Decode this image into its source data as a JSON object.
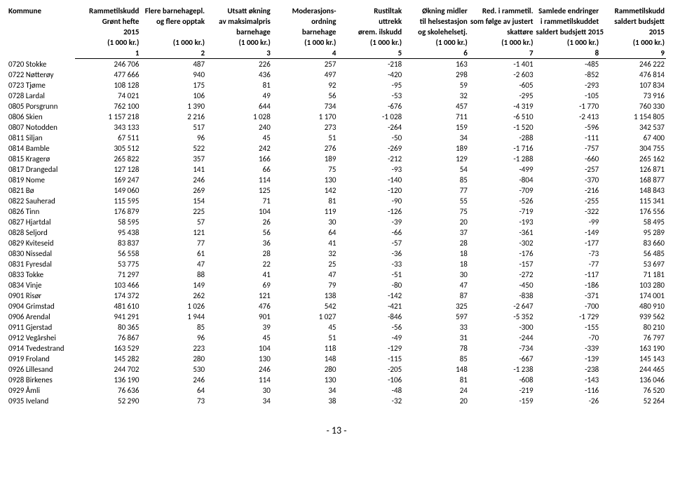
{
  "page_number": "- 13 -",
  "headers": {
    "h1": [
      "Kommune",
      "Rammetilskudd",
      "Flere barnehagepl.",
      "Utsatt økning",
      "Moderasjons-",
      "Rustiltak",
      "Økning midler",
      "Red. i rammetil.",
      "Samlede endringer",
      "Rammetilskudd"
    ],
    "h2": [
      "",
      "Grønt hefte",
      "og flere opptak",
      "av maksimalpris",
      "ordning",
      "uttrekk",
      "til helsestasjon",
      "som følge av justert",
      "i rammetilskuddet",
      "saldert budsjett"
    ],
    "h3": [
      "",
      "2015",
      "",
      "barnehage",
      "barnehage",
      "ørem. ilskudd",
      "og skolehelsetj.",
      "skattøre",
      "saldert budsjett 2015",
      "2015"
    ],
    "h4": [
      "",
      "(1 000 kr.)",
      "(1 000 kr.)",
      "(1 000 kr.)",
      "(1 000 kr.)",
      "(1 000 kr.)",
      "(1 000 kr.)",
      "(1 000 kr.)",
      "(1 000 kr.)",
      "(1 000 kr.)"
    ],
    "nums": [
      "",
      "1",
      "2",
      "3",
      "4",
      "5",
      "6",
      "7",
      "8",
      "9"
    ]
  },
  "rows": [
    {
      "name": "0720 Stokke",
      "v": [
        "246 706",
        "487",
        "226",
        "257",
        "-218",
        "163",
        "-1 401",
        "-485",
        "246 222"
      ]
    },
    {
      "name": "0722 Nøtterøy",
      "v": [
        "477 666",
        "940",
        "436",
        "497",
        "-420",
        "298",
        "-2 603",
        "-852",
        "476 814"
      ]
    },
    {
      "name": "0723 Tjøme",
      "v": [
        "108 128",
        "175",
        "81",
        "92",
        "-95",
        "59",
        "-605",
        "-293",
        "107 834"
      ]
    },
    {
      "name": "0728 Lardal",
      "v": [
        "74 021",
        "106",
        "49",
        "56",
        "-53",
        "32",
        "-295",
        "-105",
        "73 916"
      ]
    },
    {
      "name": "0805 Porsgrunn",
      "v": [
        "762 100",
        "1 390",
        "644",
        "734",
        "-676",
        "457",
        "-4 319",
        "-1 770",
        "760 330"
      ]
    },
    {
      "name": "0806 Skien",
      "v": [
        "1 157 218",
        "2 216",
        "1 028",
        "1 170",
        "-1 028",
        "711",
        "-6 510",
        "-2 413",
        "1 154 805"
      ]
    },
    {
      "name": "0807 Notodden",
      "v": [
        "343 133",
        "517",
        "240",
        "273",
        "-264",
        "159",
        "-1 520",
        "-596",
        "342 537"
      ]
    },
    {
      "name": "0811 Siljan",
      "v": [
        "67 511",
        "96",
        "45",
        "51",
        "-50",
        "34",
        "-288",
        "-111",
        "67 400"
      ]
    },
    {
      "name": "0814 Bamble",
      "v": [
        "305 512",
        "522",
        "242",
        "276",
        "-269",
        "189",
        "-1 716",
        "-757",
        "304 755"
      ]
    },
    {
      "name": "0815 Kragerø",
      "v": [
        "265 822",
        "357",
        "166",
        "189",
        "-212",
        "129",
        "-1 288",
        "-660",
        "265 162"
      ]
    },
    {
      "name": "0817 Drangedal",
      "v": [
        "127 128",
        "141",
        "66",
        "75",
        "-93",
        "54",
        "-499",
        "-257",
        "126 871"
      ]
    },
    {
      "name": "0819 Nome",
      "v": [
        "169 247",
        "246",
        "114",
        "130",
        "-140",
        "85",
        "-804",
        "-370",
        "168 877"
      ]
    },
    {
      "name": "0821 Bø",
      "v": [
        "149 060",
        "269",
        "125",
        "142",
        "-120",
        "77",
        "-709",
        "-216",
        "148 843"
      ]
    },
    {
      "name": "0822 Sauherad",
      "v": [
        "115 595",
        "154",
        "71",
        "81",
        "-90",
        "55",
        "-526",
        "-255",
        "115 341"
      ]
    },
    {
      "name": "0826 Tinn",
      "v": [
        "176 879",
        "225",
        "104",
        "119",
        "-126",
        "75",
        "-719",
        "-322",
        "176 556"
      ]
    },
    {
      "name": "0827 Hjartdal",
      "v": [
        "58 595",
        "57",
        "26",
        "30",
        "-39",
        "20",
        "-193",
        "-99",
        "58 495"
      ]
    },
    {
      "name": "0828 Seljord",
      "v": [
        "95 438",
        "121",
        "56",
        "64",
        "-66",
        "37",
        "-361",
        "-149",
        "95 289"
      ]
    },
    {
      "name": "0829 Kviteseid",
      "v": [
        "83 837",
        "77",
        "36",
        "41",
        "-57",
        "28",
        "-302",
        "-177",
        "83 660"
      ]
    },
    {
      "name": "0830 Nissedal",
      "v": [
        "56 558",
        "61",
        "28",
        "32",
        "-36",
        "18",
        "-176",
        "-73",
        "56 485"
      ]
    },
    {
      "name": "0831 Fyresdal",
      "v": [
        "53 775",
        "47",
        "22",
        "25",
        "-33",
        "18",
        "-157",
        "-77",
        "53 697"
      ]
    },
    {
      "name": "0833 Tokke",
      "v": [
        "71 297",
        "88",
        "41",
        "47",
        "-51",
        "30",
        "-272",
        "-117",
        "71 181"
      ]
    },
    {
      "name": "0834 Vinje",
      "v": [
        "103 466",
        "149",
        "69",
        "79",
        "-80",
        "47",
        "-450",
        "-186",
        "103 280"
      ]
    },
    {
      "name": "0901 Risør",
      "v": [
        "174 372",
        "262",
        "121",
        "138",
        "-142",
        "87",
        "-838",
        "-371",
        "174 001"
      ]
    },
    {
      "name": "0904 Grimstad",
      "v": [
        "481 610",
        "1 026",
        "476",
        "542",
        "-421",
        "325",
        "-2 647",
        "-700",
        "480 910"
      ]
    },
    {
      "name": "0906 Arendal",
      "v": [
        "941 291",
        "1 944",
        "901",
        "1 027",
        "-846",
        "597",
        "-5 352",
        "-1 729",
        "939 562"
      ]
    },
    {
      "name": "0911 Gjerstad",
      "v": [
        "80 365",
        "85",
        "39",
        "45",
        "-56",
        "33",
        "-300",
        "-155",
        "80 210"
      ]
    },
    {
      "name": "0912 Vegårshei",
      "v": [
        "76 867",
        "96",
        "45",
        "51",
        "-49",
        "31",
        "-244",
        "-70",
        "76 797"
      ]
    },
    {
      "name": "0914 Tvedestrand",
      "v": [
        "163 529",
        "223",
        "104",
        "118",
        "-129",
        "78",
        "-734",
        "-339",
        "163 190"
      ]
    },
    {
      "name": "0919 Froland",
      "v": [
        "145 282",
        "280",
        "130",
        "148",
        "-115",
        "85",
        "-667",
        "-139",
        "145 143"
      ]
    },
    {
      "name": "0926 Lillesand",
      "v": [
        "244 702",
        "530",
        "246",
        "280",
        "-205",
        "148",
        "-1 238",
        "-238",
        "244 465"
      ]
    },
    {
      "name": "0928 Birkenes",
      "v": [
        "136 190",
        "246",
        "114",
        "130",
        "-106",
        "81",
        "-608",
        "-143",
        "136 046"
      ]
    },
    {
      "name": "0929 Åmli",
      "v": [
        "76 636",
        "64",
        "30",
        "34",
        "-48",
        "24",
        "-219",
        "-116",
        "76 520"
      ]
    },
    {
      "name": "0935 Iveland",
      "v": [
        "52 290",
        "73",
        "34",
        "38",
        "-32",
        "20",
        "-159",
        "-26",
        "52 264"
      ]
    }
  ]
}
